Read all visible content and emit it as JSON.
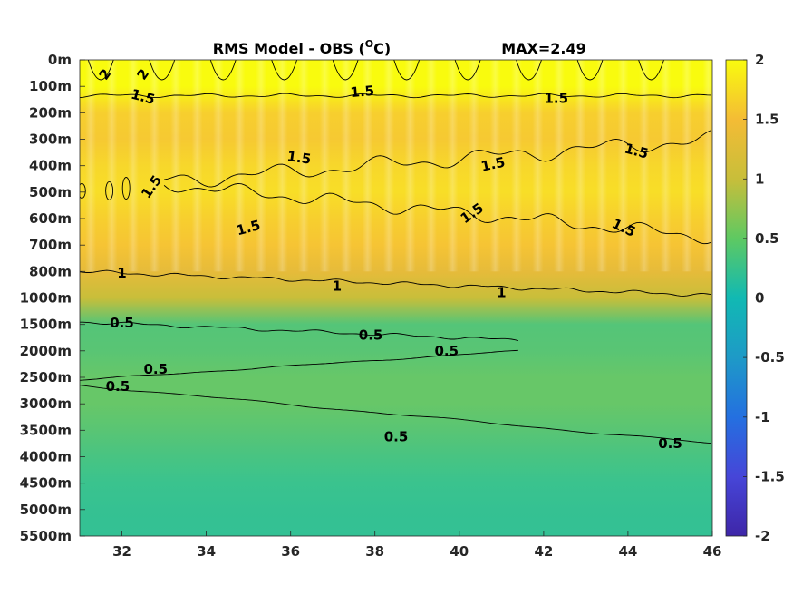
{
  "chart_data": {
    "type": "heatmap",
    "title": "RMS Model - OBS (°C)",
    "title_parts": {
      "main": "RMS Model - OBS (",
      "sup": "O",
      "after": "C)"
    },
    "annotation": "MAX=2.49",
    "xlabel": "",
    "ylabel": "",
    "xlim": [
      31,
      46
    ],
    "x_ticks": [
      32,
      34,
      36,
      38,
      40,
      42,
      44,
      46
    ],
    "y_ticks": [
      "0m",
      "100m",
      "200m",
      "300m",
      "400m",
      "500m",
      "600m",
      "700m",
      "800m",
      "1000m",
      "1500m",
      "2000m",
      "2500m",
      "3000m",
      "3500m",
      "4000m",
      "4500m",
      "5000m",
      "5500m"
    ],
    "colorbar": {
      "ticks": [
        "2",
        "1.5",
        "1",
        "0.5",
        "0",
        "-0.5",
        "-1",
        "-1.5",
        "-2"
      ],
      "range": [
        -2,
        2
      ],
      "colormap": "parula"
    },
    "field_profile_by_level": [
      2.3,
      2.1,
      1.62,
      1.55,
      1.7,
      1.78,
      1.62,
      1.5,
      1.2,
      1.0,
      0.6,
      0.62,
      0.68,
      0.68,
      0.62,
      0.55,
      0.48,
      0.42,
      0.4
    ],
    "contour_labels": [
      {
        "text": "2",
        "x": 31.6,
        "level": 0.55,
        "rotate": -55
      },
      {
        "text": "2",
        "x": 32.5,
        "level": 0.55,
        "rotate": -55
      },
      {
        "text": "1.5",
        "x": 32.5,
        "level": 1.4,
        "rotate": 15
      },
      {
        "text": "1.5",
        "x": 37.7,
        "level": 1.2,
        "rotate": -5
      },
      {
        "text": "1.5",
        "x": 42.3,
        "level": 1.45,
        "rotate": 0
      },
      {
        "text": "1.5",
        "x": 36.2,
        "level": 3.7,
        "rotate": 8
      },
      {
        "text": "1.5",
        "x": 40.8,
        "level": 3.95,
        "rotate": -12
      },
      {
        "text": "1.5",
        "x": 44.2,
        "level": 3.45,
        "rotate": 15
      },
      {
        "text": "1.5",
        "x": 32.7,
        "level": 4.8,
        "rotate": -55
      },
      {
        "text": "1.5",
        "x": 35.0,
        "level": 6.35,
        "rotate": -15
      },
      {
        "text": "1.5",
        "x": 40.3,
        "level": 5.8,
        "rotate": -35
      },
      {
        "text": "1.5",
        "x": 43.9,
        "level": 6.35,
        "rotate": 25
      },
      {
        "text": "1",
        "x": 32.0,
        "level": 8.05,
        "rotate": 0
      },
      {
        "text": "1",
        "x": 37.1,
        "level": 8.55,
        "rotate": 0
      },
      {
        "text": "1",
        "x": 41.0,
        "level": 8.8,
        "rotate": 0
      },
      {
        "text": "0.5",
        "x": 32.0,
        "level": 9.95,
        "rotate": 0
      },
      {
        "text": "0.5",
        "x": 37.9,
        "level": 10.4,
        "rotate": 0
      },
      {
        "text": "0.5",
        "x": 39.7,
        "level": 11.0,
        "rotate": 0
      },
      {
        "text": "0.5",
        "x": 32.8,
        "level": 11.7,
        "rotate": 0
      },
      {
        "text": "0.5",
        "x": 31.9,
        "level": 12.35,
        "rotate": 0
      },
      {
        "text": "0.5",
        "x": 38.5,
        "level": 14.25,
        "rotate": 0
      },
      {
        "text": "0.5",
        "x": 45.0,
        "level": 14.5,
        "rotate": 0
      }
    ]
  }
}
